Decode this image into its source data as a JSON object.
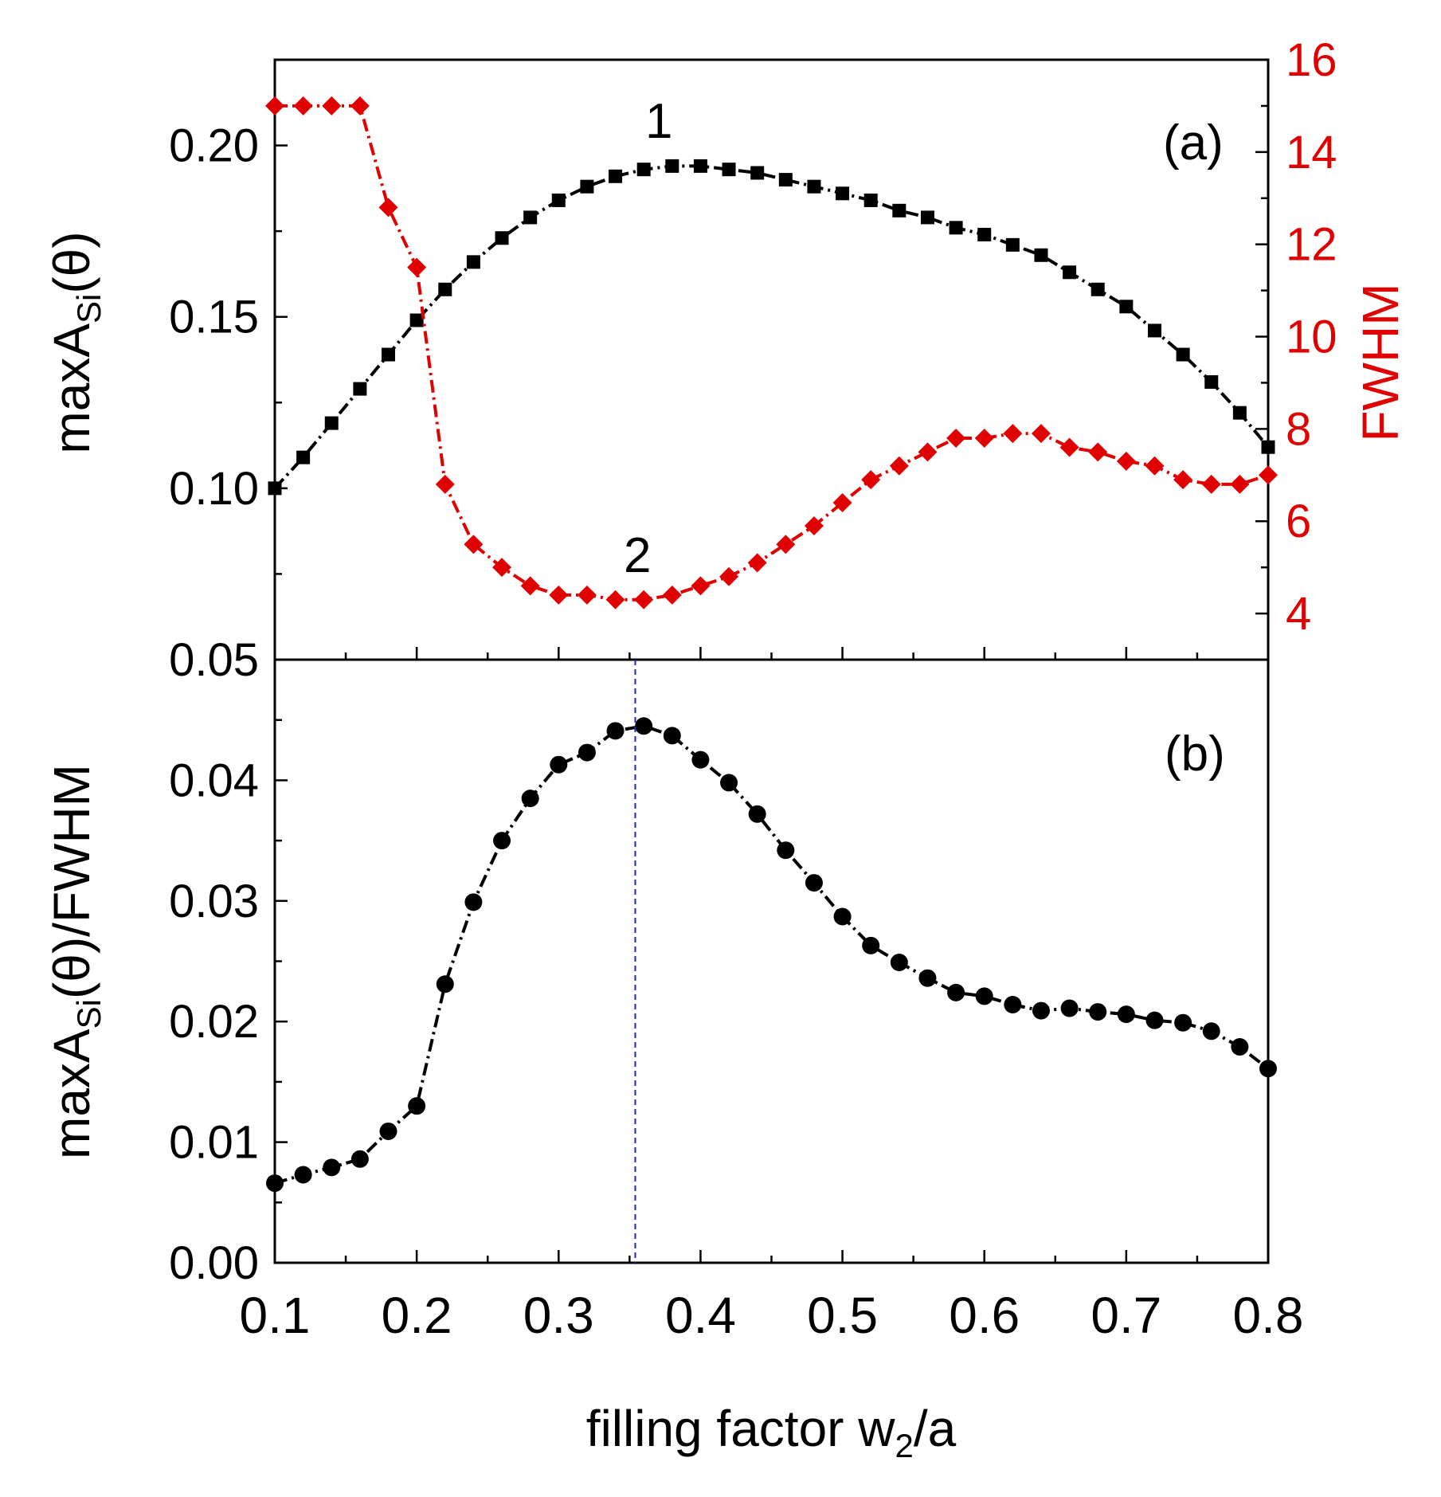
{
  "chart_data": [
    {
      "type": "line",
      "panel": "(a)",
      "x": [
        0.1,
        0.12,
        0.14,
        0.16,
        0.18,
        0.2,
        0.22,
        0.24,
        0.26,
        0.28,
        0.3,
        0.32,
        0.34,
        0.36,
        0.38,
        0.4,
        0.42,
        0.44,
        0.46,
        0.48,
        0.5,
        0.52,
        0.54,
        0.56,
        0.58,
        0.6,
        0.62,
        0.64,
        0.66,
        0.68,
        0.7,
        0.72,
        0.74,
        0.76,
        0.78,
        0.8
      ],
      "series": [
        {
          "name": "1",
          "axis": "left",
          "marker": "square",
          "color": "#000000",
          "values": [
            0.1,
            0.109,
            0.119,
            0.129,
            0.139,
            0.149,
            0.158,
            0.166,
            0.173,
            0.179,
            0.184,
            0.188,
            0.191,
            0.193,
            0.194,
            0.194,
            0.193,
            0.192,
            0.19,
            0.188,
            0.186,
            0.184,
            0.181,
            0.179,
            0.176,
            0.174,
            0.171,
            0.168,
            0.163,
            0.158,
            0.153,
            0.146,
            0.139,
            0.131,
            0.122,
            0.112
          ]
        },
        {
          "name": "2",
          "axis": "right",
          "marker": "diamond",
          "color": "#e10000",
          "values": [
            15.0,
            15.0,
            15.0,
            15.0,
            12.8,
            11.5,
            6.8,
            5.5,
            5.0,
            4.6,
            4.4,
            4.4,
            4.3,
            4.3,
            4.4,
            4.6,
            4.8,
            5.1,
            5.5,
            5.9,
            6.4,
            6.9,
            7.2,
            7.5,
            7.8,
            7.8,
            7.9,
            7.9,
            7.6,
            7.5,
            7.3,
            7.2,
            6.9,
            6.8,
            6.8,
            7.0
          ]
        }
      ],
      "ylabel_parts": [
        "maxA",
        "Si",
        "(θ)"
      ],
      "ylim": [
        0.05,
        0.225
      ],
      "yticks": [
        "0.05",
        "0.10",
        "0.15",
        "0.20"
      ],
      "y2label": "FWHM",
      "y2lim": [
        3,
        16
      ],
      "y2ticks": [
        "4",
        "6",
        "8",
        "10",
        "12",
        "14",
        "16"
      ],
      "annotations": [
        "(a)",
        "1",
        "2"
      ]
    },
    {
      "type": "line",
      "panel": "(b)",
      "x": [
        0.1,
        0.12,
        0.14,
        0.16,
        0.18,
        0.2,
        0.22,
        0.24,
        0.26,
        0.28,
        0.3,
        0.32,
        0.34,
        0.36,
        0.38,
        0.4,
        0.42,
        0.44,
        0.46,
        0.48,
        0.5,
        0.52,
        0.54,
        0.56,
        0.58,
        0.6,
        0.62,
        0.64,
        0.66,
        0.68,
        0.7,
        0.72,
        0.74,
        0.76,
        0.78,
        0.8
      ],
      "series": [
        {
          "name": "maxA_Si(θ)/FWHM",
          "marker": "circle",
          "color": "#000000",
          "values": [
            0.0066,
            0.0073,
            0.0079,
            0.0086,
            0.0109,
            0.013,
            0.0231,
            0.0299,
            0.035,
            0.0385,
            0.0413,
            0.0423,
            0.0441,
            0.0445,
            0.0437,
            0.0417,
            0.0398,
            0.0372,
            0.0342,
            0.0315,
            0.0287,
            0.0263,
            0.0249,
            0.0236,
            0.0224,
            0.0221,
            0.0214,
            0.0209,
            0.0211,
            0.0208,
            0.0206,
            0.0201,
            0.0199,
            0.0192,
            0.0179,
            0.0161
          ]
        }
      ],
      "vline_x": 0.354,
      "ylabel_parts": [
        "maxA",
        "Si",
        "(θ)/FWHM"
      ],
      "ylim": [
        0,
        0.05
      ],
      "yticks": [
        "0.00",
        "0.01",
        "0.02",
        "0.03",
        "0.04"
      ],
      "annotations": [
        "(b)"
      ]
    }
  ],
  "xaxis": {
    "label_parts": [
      "filling factor w",
      "2",
      "/a"
    ],
    "xlim": [
      0.1,
      0.8
    ],
    "ticks": [
      "0.1",
      "0.2",
      "0.3",
      "0.4",
      "0.5",
      "0.6",
      "0.7",
      "0.8"
    ]
  }
}
